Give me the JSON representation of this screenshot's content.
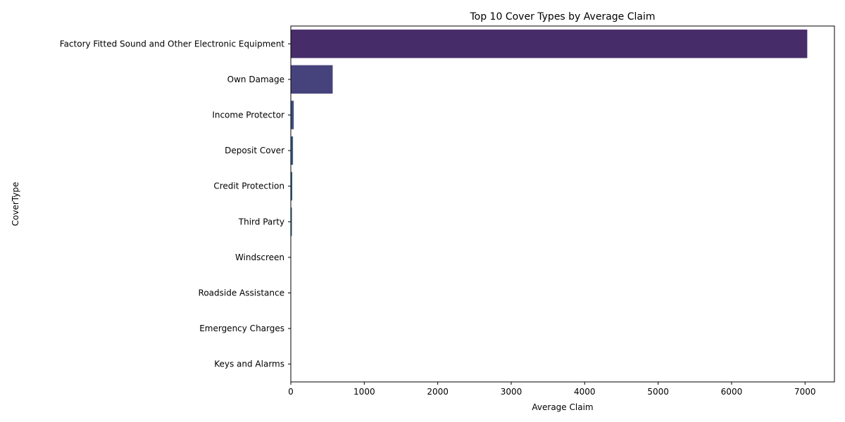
{
  "chart_data": {
    "type": "bar",
    "orientation": "horizontal",
    "title": "Top 10 Cover Types by Average Claim",
    "xlabel": "Average Claim",
    "ylabel": "CoverType",
    "xlim": [
      0,
      7400
    ],
    "xticks": [
      0,
      1000,
      2000,
      3000,
      4000,
      5000,
      6000,
      7000
    ],
    "grid": false,
    "categories": [
      "Factory Fitted Sound and Other Electronic Equipment",
      "Own Damage",
      "Income Protector",
      "Deposit Cover",
      "Credit Protection",
      "Third Party",
      "Windscreen",
      "Roadside Assistance",
      "Emergency Charges",
      "Keys and Alarms"
    ],
    "values": [
      7030,
      570,
      40,
      30,
      20,
      15,
      3,
      2,
      1,
      0.5
    ],
    "colors": [
      "#472c6a",
      "#46437c",
      "#3f5083",
      "#3b5a87",
      "#356489",
      "#30708c",
      "#2c7a8e",
      "#28868e",
      "#22918c",
      "#1f9c88"
    ]
  }
}
